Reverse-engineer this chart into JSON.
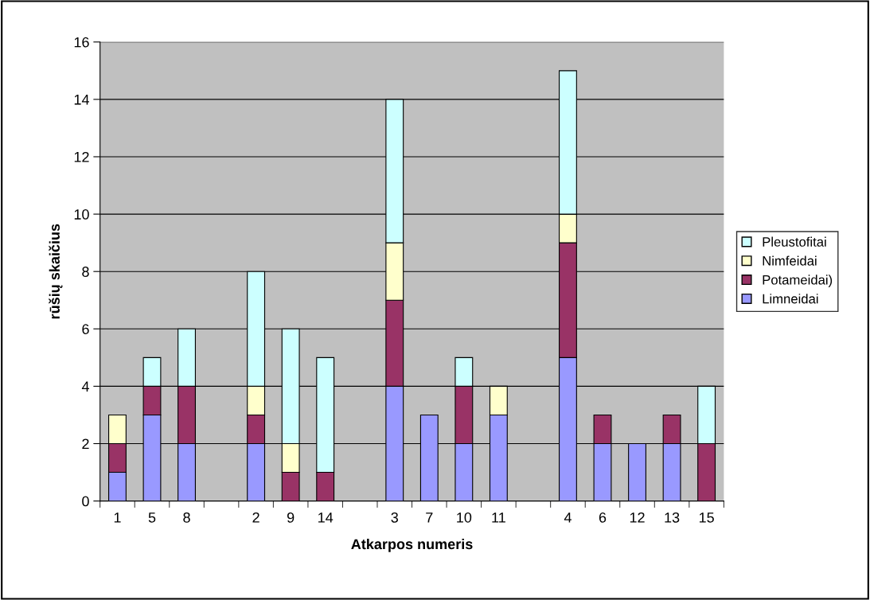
{
  "chart_data": {
    "type": "bar",
    "stacked": true,
    "xlabel": "Atkarpos numeris",
    "ylabel": "rūšių skaičius",
    "categories": [
      "1",
      "5",
      "8",
      null,
      "2",
      "9",
      "14",
      null,
      "3",
      "7",
      "10",
      "11",
      null,
      "4",
      "6",
      "12",
      "13",
      "15"
    ],
    "series": [
      {
        "name": "Limneidai",
        "color": "#9999ff",
        "values": [
          1,
          3,
          2,
          null,
          2,
          0,
          0,
          null,
          4,
          3,
          2,
          3,
          null,
          5,
          2,
          2,
          2,
          0
        ]
      },
      {
        "name": "Potameidai)",
        "color": "#993366",
        "values": [
          1,
          1,
          2,
          null,
          1,
          1,
          1,
          null,
          3,
          0,
          2,
          0,
          null,
          4,
          1,
          0,
          1,
          2
        ]
      },
      {
        "name": "Nimfeidai",
        "color": "#ffffcc",
        "values": [
          1,
          0,
          0,
          null,
          1,
          1,
          0,
          null,
          2,
          0,
          0,
          1,
          null,
          1,
          0,
          0,
          0,
          0
        ]
      },
      {
        "name": "Pleustofitai",
        "color": "#ccffff",
        "values": [
          0,
          1,
          2,
          null,
          4,
          4,
          4,
          null,
          5,
          0,
          1,
          0,
          null,
          5,
          0,
          0,
          0,
          2
        ]
      }
    ],
    "ylim": [
      0,
      16
    ],
    "yticks": [
      0,
      2,
      4,
      6,
      8,
      10,
      12,
      14,
      16
    ],
    "grid": "y",
    "legend": "right"
  }
}
